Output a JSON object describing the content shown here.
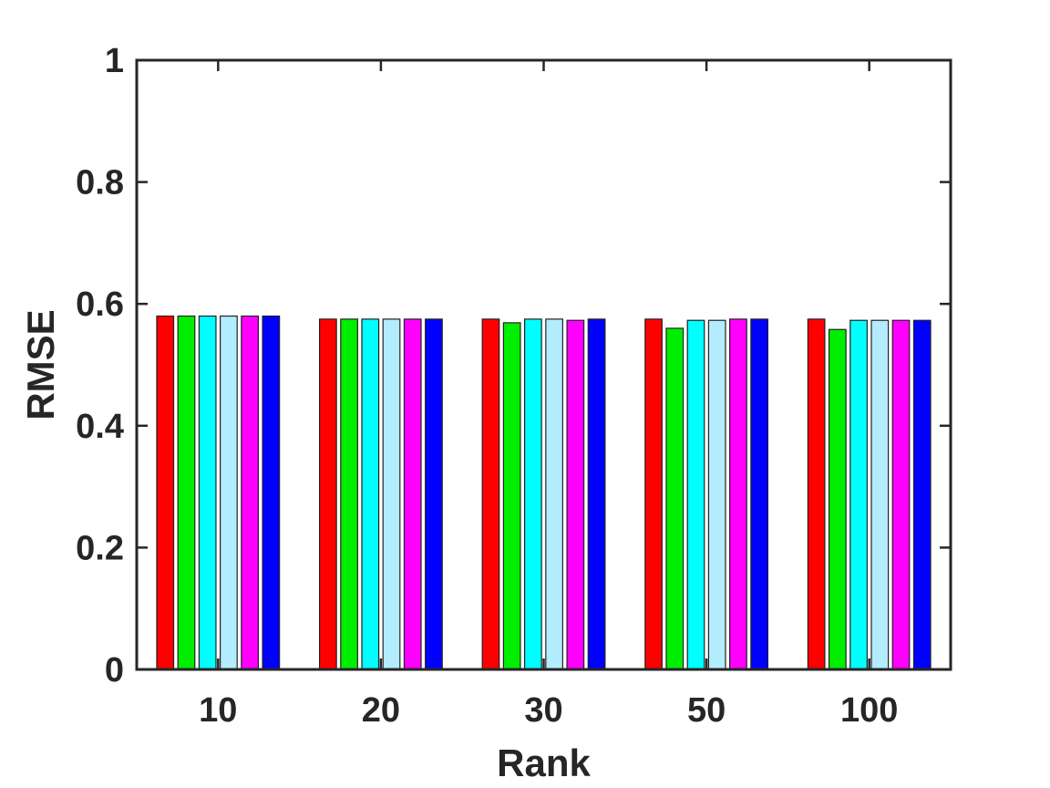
{
  "chart_data": {
    "type": "bar",
    "title": "",
    "xlabel": "Rank",
    "ylabel": "RMSE",
    "categories": [
      "10",
      "20",
      "30",
      "50",
      "100"
    ],
    "ylim": [
      0,
      1
    ],
    "yticks": [
      "0",
      "0.2",
      "0.4",
      "0.6",
      "0.8",
      "1"
    ],
    "grid": false,
    "legend": "none",
    "series": [
      {
        "color": "#ff0000",
        "values": [
          0.58,
          0.575,
          0.575,
          0.575,
          0.575
        ]
      },
      {
        "color": "#00ee00",
        "values": [
          0.58,
          0.575,
          0.569,
          0.56,
          0.558
        ]
      },
      {
        "color": "#00ffff",
        "values": [
          0.58,
          0.575,
          0.575,
          0.573,
          0.573
        ]
      },
      {
        "color": "#b3ecff",
        "values": [
          0.58,
          0.575,
          0.575,
          0.573,
          0.573
        ]
      },
      {
        "color": "#ff00ff",
        "values": [
          0.58,
          0.575,
          0.573,
          0.575,
          0.573
        ]
      },
      {
        "color": "#0000ff",
        "values": [
          0.58,
          0.575,
          0.575,
          0.575,
          0.573
        ]
      }
    ]
  }
}
